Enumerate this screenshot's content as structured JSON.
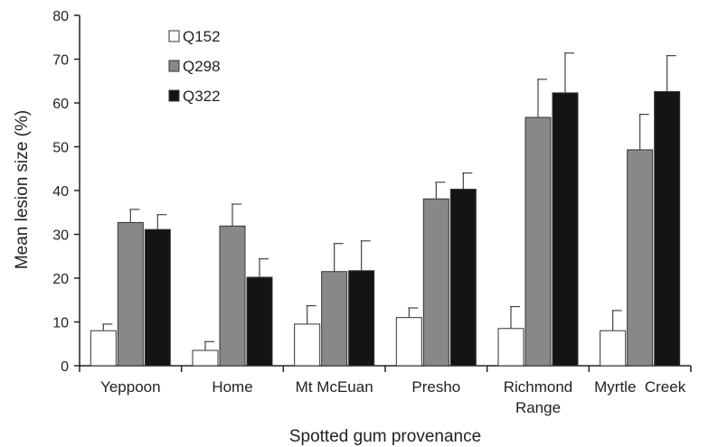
{
  "chart_data": {
    "type": "bar",
    "xlabel": "Spotted gum provenance",
    "ylabel": "Mean lesion size (%)",
    "ylim": [
      0,
      80
    ],
    "yticks": [
      0,
      10,
      20,
      30,
      40,
      50,
      60,
      70,
      80
    ],
    "categories": [
      [
        "Yeppoon"
      ],
      [
        "Home"
      ],
      [
        "Mt McEuan"
      ],
      [
        "Presho"
      ],
      [
        "Richmond",
        "Range"
      ],
      [
        "Myrtle  Creek"
      ]
    ],
    "series": [
      {
        "name": "Q152",
        "color": "#ffffff",
        "values": [
          8,
          3.5,
          9.5,
          11,
          8.5,
          8
        ],
        "errors": [
          1.5,
          2,
          4.2,
          2.2,
          5,
          4.6
        ]
      },
      {
        "name": "Q298",
        "color": "#888888",
        "values": [
          32.7,
          31.9,
          21.5,
          38.1,
          56.7,
          49.3
        ],
        "errors": [
          3,
          5,
          6.4,
          3.8,
          8.7,
          8.1
        ]
      },
      {
        "name": "Q322",
        "color": "#141414",
        "values": [
          31.1,
          20.2,
          21.7,
          40.3,
          62.3,
          62.6
        ],
        "errors": [
          3.4,
          4.2,
          6.8,
          3.7,
          9.1,
          8.2
        ]
      }
    ],
    "legend_position": "top-left",
    "grid": false
  }
}
